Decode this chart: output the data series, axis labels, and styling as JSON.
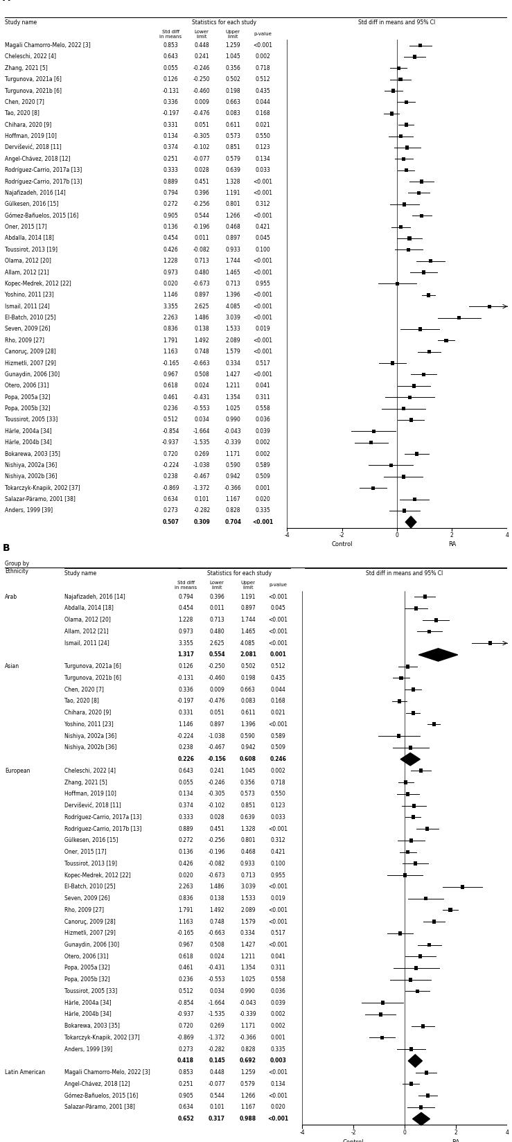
{
  "panel_A": {
    "studies": [
      {
        "name": "Magali Chamorro-Melo, 2022 [3]",
        "std": 0.853,
        "lower": 0.448,
        "upper": 1.259,
        "pval": "<0.001",
        "summary": false
      },
      {
        "name": "Cheleschi, 2022 [4]",
        "std": 0.643,
        "lower": 0.241,
        "upper": 1.045,
        "pval": "0.002",
        "summary": false
      },
      {
        "name": "Zhang, 2021 [5]",
        "std": 0.055,
        "lower": -0.246,
        "upper": 0.356,
        "pval": "0.718",
        "summary": false
      },
      {
        "name": "Turgunova, 2021a [6]",
        "std": 0.126,
        "lower": -0.25,
        "upper": 0.502,
        "pval": "0.512",
        "summary": false
      },
      {
        "name": "Turgunova, 2021b [6]",
        "std": -0.131,
        "lower": -0.46,
        "upper": 0.198,
        "pval": "0.435",
        "summary": false
      },
      {
        "name": "Chen, 2020 [7]",
        "std": 0.336,
        "lower": 0.009,
        "upper": 0.663,
        "pval": "0.044",
        "summary": false
      },
      {
        "name": "Tao, 2020 [8]",
        "std": -0.197,
        "lower": -0.476,
        "upper": 0.083,
        "pval": "0.168",
        "summary": false
      },
      {
        "name": "Chihara, 2020 [9]",
        "std": 0.331,
        "lower": 0.051,
        "upper": 0.611,
        "pval": "0.021",
        "summary": false
      },
      {
        "name": "Hoffman, 2019 [10]",
        "std": 0.134,
        "lower": -0.305,
        "upper": 0.573,
        "pval": "0.550",
        "summary": false
      },
      {
        "name": "Dervišević, 2018 [11]",
        "std": 0.374,
        "lower": -0.102,
        "upper": 0.851,
        "pval": "0.123",
        "summary": false
      },
      {
        "name": "Angel-Chávez, 2018 [12]",
        "std": 0.251,
        "lower": -0.077,
        "upper": 0.579,
        "pval": "0.134",
        "summary": false
      },
      {
        "name": "Rodríguez-Carrio, 2017a [13]",
        "std": 0.333,
        "lower": 0.028,
        "upper": 0.639,
        "pval": "0.033",
        "summary": false
      },
      {
        "name": "Rodríguez-Carrio, 2017b [13]",
        "std": 0.889,
        "lower": 0.451,
        "upper": 1.328,
        "pval": "<0.001",
        "summary": false
      },
      {
        "name": "Najafizadeh, 2016 [14]",
        "std": 0.794,
        "lower": 0.396,
        "upper": 1.191,
        "pval": "<0.001",
        "summary": false
      },
      {
        "name": "Gülkesen, 2016 [15]",
        "std": 0.272,
        "lower": -0.256,
        "upper": 0.801,
        "pval": "0.312",
        "summary": false
      },
      {
        "name": "Gómez-Bañuelos, 2015 [16]",
        "std": 0.905,
        "lower": 0.544,
        "upper": 1.266,
        "pval": "<0.001",
        "summary": false
      },
      {
        "name": "Oner, 2015 [17]",
        "std": 0.136,
        "lower": -0.196,
        "upper": 0.468,
        "pval": "0.421",
        "summary": false
      },
      {
        "name": "Abdalla, 2014 [18]",
        "std": 0.454,
        "lower": 0.011,
        "upper": 0.897,
        "pval": "0.045",
        "summary": false
      },
      {
        "name": "Toussirot, 2013 [19]",
        "std": 0.426,
        "lower": -0.082,
        "upper": 0.933,
        "pval": "0.100",
        "summary": false
      },
      {
        "name": "Olama, 2012 [20]",
        "std": 1.228,
        "lower": 0.713,
        "upper": 1.744,
        "pval": "<0.001",
        "summary": false
      },
      {
        "name": "Allam, 2012 [21]",
        "std": 0.973,
        "lower": 0.48,
        "upper": 1.465,
        "pval": "<0.001",
        "summary": false
      },
      {
        "name": "Kopec-Medrek, 2012 [22]",
        "std": 0.02,
        "lower": -0.673,
        "upper": 0.713,
        "pval": "0.955",
        "summary": false
      },
      {
        "name": "Yoshino, 2011 [23]",
        "std": 1.146,
        "lower": 0.897,
        "upper": 1.396,
        "pval": "<0.001",
        "summary": false
      },
      {
        "name": "Ismail, 2011 [24]",
        "std": 3.355,
        "lower": 2.625,
        "upper": 4.085,
        "pval": "<0.001",
        "summary": false
      },
      {
        "name": "El-Batch, 2010 [25]",
        "std": 2.263,
        "lower": 1.486,
        "upper": 3.039,
        "pval": "<0.001",
        "summary": false
      },
      {
        "name": "Seven, 2009 [26]",
        "std": 0.836,
        "lower": 0.138,
        "upper": 1.533,
        "pval": "0.019",
        "summary": false
      },
      {
        "name": "Rho, 2009 [27]",
        "std": 1.791,
        "lower": 1.492,
        "upper": 2.089,
        "pval": "<0.001",
        "summary": false
      },
      {
        "name": "Canoruç, 2009 [28]",
        "std": 1.163,
        "lower": 0.748,
        "upper": 1.579,
        "pval": "<0.001",
        "summary": false
      },
      {
        "name": "Hizmetli, 2007 [29]",
        "std": -0.165,
        "lower": -0.663,
        "upper": 0.334,
        "pval": "0.517",
        "summary": false
      },
      {
        "name": "Gunaydin, 2006 [30]",
        "std": 0.967,
        "lower": 0.508,
        "upper": 1.427,
        "pval": "<0.001",
        "summary": false
      },
      {
        "name": "Otero, 2006 [31]",
        "std": 0.618,
        "lower": 0.024,
        "upper": 1.211,
        "pval": "0.041",
        "summary": false
      },
      {
        "name": "Popa, 2005a [32]",
        "std": 0.461,
        "lower": -0.431,
        "upper": 1.354,
        "pval": "0.311",
        "summary": false
      },
      {
        "name": "Popa, 2005b [32]",
        "std": 0.236,
        "lower": -0.553,
        "upper": 1.025,
        "pval": "0.558",
        "summary": false
      },
      {
        "name": "Toussirot, 2005 [33]",
        "std": 0.512,
        "lower": 0.034,
        "upper": 0.99,
        "pval": "0.036",
        "summary": false
      },
      {
        "name": "Härle, 2004a [34]",
        "std": -0.854,
        "lower": -1.664,
        "upper": -0.043,
        "pval": "0.039",
        "summary": false
      },
      {
        "name": "Härle, 2004b [34]",
        "std": -0.937,
        "lower": -1.535,
        "upper": -0.339,
        "pval": "0.002",
        "summary": false
      },
      {
        "name": "Bokarewa, 2003 [35]",
        "std": 0.72,
        "lower": 0.269,
        "upper": 1.171,
        "pval": "0.002",
        "summary": false
      },
      {
        "name": "Nishiya, 2002a [36]",
        "std": -0.224,
        "lower": -1.038,
        "upper": 0.59,
        "pval": "0.589",
        "summary": false
      },
      {
        "name": "Nishiya, 2002b [36]",
        "std": 0.238,
        "lower": -0.467,
        "upper": 0.942,
        "pval": "0.509",
        "summary": false
      },
      {
        "name": "Tokarczyk-Knapik, 2002 [37]",
        "std": -0.869,
        "lower": -1.372,
        "upper": -0.366,
        "pval": "0.001",
        "summary": false
      },
      {
        "name": "Salazar-Páramo, 2001 [38]",
        "std": 0.634,
        "lower": 0.101,
        "upper": 1.167,
        "pval": "0.020",
        "summary": false
      },
      {
        "name": "Anders, 1999 [39]",
        "std": 0.273,
        "lower": -0.282,
        "upper": 0.828,
        "pval": "0.335",
        "summary": false
      },
      {
        "name": "",
        "std": 0.507,
        "lower": 0.309,
        "upper": 0.704,
        "pval": "<0.001",
        "summary": true
      }
    ],
    "xmin": -4,
    "xmax": 4,
    "xticks": [
      -4,
      -2,
      0,
      2,
      4
    ]
  },
  "panel_B": {
    "groups": [
      {
        "group": "Arab",
        "name": "Najafizadeh, 2016 [14]",
        "std": 0.794,
        "lower": 0.396,
        "upper": 1.191,
        "pval": "<0.001",
        "summary": false
      },
      {
        "group": "Arab",
        "name": "Abdalla, 2014 [18]",
        "std": 0.454,
        "lower": 0.011,
        "upper": 0.897,
        "pval": "0.045",
        "summary": false
      },
      {
        "group": "Arab",
        "name": "Olama, 2012 [20]",
        "std": 1.228,
        "lower": 0.713,
        "upper": 1.744,
        "pval": "<0.001",
        "summary": false
      },
      {
        "group": "Arab",
        "name": "Allam, 2012 [21]",
        "std": 0.973,
        "lower": 0.48,
        "upper": 1.465,
        "pval": "<0.001",
        "summary": false
      },
      {
        "group": "Arab",
        "name": "Ismail, 2011 [24]",
        "std": 3.355,
        "lower": 2.625,
        "upper": 4.085,
        "pval": "<0.001",
        "summary": false
      },
      {
        "group": "Arab",
        "name": "",
        "std": 1.317,
        "lower": 0.554,
        "upper": 2.081,
        "pval": "0.001",
        "summary": true
      },
      {
        "group": "Asian",
        "name": "Turgunova, 2021a [6]",
        "std": 0.126,
        "lower": -0.25,
        "upper": 0.502,
        "pval": "0.512",
        "summary": false
      },
      {
        "group": "Asian",
        "name": "Turgunova, 2021b [6]",
        "std": -0.131,
        "lower": -0.46,
        "upper": 0.198,
        "pval": "0.435",
        "summary": false
      },
      {
        "group": "Asian",
        "name": "Chen, 2020 [7]",
        "std": 0.336,
        "lower": 0.009,
        "upper": 0.663,
        "pval": "0.044",
        "summary": false
      },
      {
        "group": "Asian",
        "name": "Tao, 2020 [8]",
        "std": -0.197,
        "lower": -0.476,
        "upper": 0.083,
        "pval": "0.168",
        "summary": false
      },
      {
        "group": "Asian",
        "name": "Chihara, 2020 [9]",
        "std": 0.331,
        "lower": 0.051,
        "upper": 0.611,
        "pval": "0.021",
        "summary": false
      },
      {
        "group": "Asian",
        "name": "Yoshino, 2011 [23]",
        "std": 1.146,
        "lower": 0.897,
        "upper": 1.396,
        "pval": "<0.001",
        "summary": false
      },
      {
        "group": "Asian",
        "name": "Nishiya, 2002a [36]",
        "std": -0.224,
        "lower": -1.038,
        "upper": 0.59,
        "pval": "0.589",
        "summary": false
      },
      {
        "group": "Asian",
        "name": "Nishiya, 2002b [36]",
        "std": 0.238,
        "lower": -0.467,
        "upper": 0.942,
        "pval": "0.509",
        "summary": false
      },
      {
        "group": "Asian",
        "name": "",
        "std": 0.226,
        "lower": -0.156,
        "upper": 0.608,
        "pval": "0.246",
        "summary": true
      },
      {
        "group": "European",
        "name": "Cheleschi, 2022 [4]",
        "std": 0.643,
        "lower": 0.241,
        "upper": 1.045,
        "pval": "0.002",
        "summary": false
      },
      {
        "group": "European",
        "name": "Zhang, 2021 [5]",
        "std": 0.055,
        "lower": -0.246,
        "upper": 0.356,
        "pval": "0.718",
        "summary": false
      },
      {
        "group": "European",
        "name": "Hoffman, 2019 [10]",
        "std": 0.134,
        "lower": -0.305,
        "upper": 0.573,
        "pval": "0.550",
        "summary": false
      },
      {
        "group": "European",
        "name": "Dervišević, 2018 [11]",
        "std": 0.374,
        "lower": -0.102,
        "upper": 0.851,
        "pval": "0.123",
        "summary": false
      },
      {
        "group": "European",
        "name": "Rodríguez-Carrio, 2017a [13]",
        "std": 0.333,
        "lower": 0.028,
        "upper": 0.639,
        "pval": "0.033",
        "summary": false
      },
      {
        "group": "European",
        "name": "Rodríguez-Carrio, 2017b [13]",
        "std": 0.889,
        "lower": 0.451,
        "upper": 1.328,
        "pval": "<0.001",
        "summary": false
      },
      {
        "group": "European",
        "name": "Gülkesen, 2016 [15]",
        "std": 0.272,
        "lower": -0.256,
        "upper": 0.801,
        "pval": "0.312",
        "summary": false
      },
      {
        "group": "European",
        "name": "Oner, 2015 [17]",
        "std": 0.136,
        "lower": -0.196,
        "upper": 0.468,
        "pval": "0.421",
        "summary": false
      },
      {
        "group": "European",
        "name": "Toussirot, 2013 [19]",
        "std": 0.426,
        "lower": -0.082,
        "upper": 0.933,
        "pval": "0.100",
        "summary": false
      },
      {
        "group": "European",
        "name": "Kopec-Medrek, 2012 [22]",
        "std": 0.02,
        "lower": -0.673,
        "upper": 0.713,
        "pval": "0.955",
        "summary": false
      },
      {
        "group": "European",
        "name": "El-Batch, 2010 [25]",
        "std": 2.263,
        "lower": 1.486,
        "upper": 3.039,
        "pval": "<0.001",
        "summary": false
      },
      {
        "group": "European",
        "name": "Seven, 2009 [26]",
        "std": 0.836,
        "lower": 0.138,
        "upper": 1.533,
        "pval": "0.019",
        "summary": false
      },
      {
        "group": "European",
        "name": "Rho, 2009 [27]",
        "std": 1.791,
        "lower": 1.492,
        "upper": 2.089,
        "pval": "<0.001",
        "summary": false
      },
      {
        "group": "European",
        "name": "Canoruç, 2009 [28]",
        "std": 1.163,
        "lower": 0.748,
        "upper": 1.579,
        "pval": "<0.001",
        "summary": false
      },
      {
        "group": "European",
        "name": "Hizmetli, 2007 [29]",
        "std": -0.165,
        "lower": -0.663,
        "upper": 0.334,
        "pval": "0.517",
        "summary": false
      },
      {
        "group": "European",
        "name": "Gunaydin, 2006 [30]",
        "std": 0.967,
        "lower": 0.508,
        "upper": 1.427,
        "pval": "<0.001",
        "summary": false
      },
      {
        "group": "European",
        "name": "Otero, 2006 [31]",
        "std": 0.618,
        "lower": 0.024,
        "upper": 1.211,
        "pval": "0.041",
        "summary": false
      },
      {
        "group": "European",
        "name": "Popa, 2005a [32]",
        "std": 0.461,
        "lower": -0.431,
        "upper": 1.354,
        "pval": "0.311",
        "summary": false
      },
      {
        "group": "European",
        "name": "Popa, 2005b [32]",
        "std": 0.236,
        "lower": -0.553,
        "upper": 1.025,
        "pval": "0.558",
        "summary": false
      },
      {
        "group": "European",
        "name": "Toussirot, 2005 [33]",
        "std": 0.512,
        "lower": 0.034,
        "upper": 0.99,
        "pval": "0.036",
        "summary": false
      },
      {
        "group": "European",
        "name": "Härle, 2004a [34]",
        "std": -0.854,
        "lower": -1.664,
        "upper": -0.043,
        "pval": "0.039",
        "summary": false
      },
      {
        "group": "European",
        "name": "Härle, 2004b [34]",
        "std": -0.937,
        "lower": -1.535,
        "upper": -0.339,
        "pval": "0.002",
        "summary": false
      },
      {
        "group": "European",
        "name": "Bokarewa, 2003 [35]",
        "std": 0.72,
        "lower": 0.269,
        "upper": 1.171,
        "pval": "0.002",
        "summary": false
      },
      {
        "group": "European",
        "name": "Tokarczyk-Knapik, 2002 [37]",
        "std": -0.869,
        "lower": -1.372,
        "upper": -0.366,
        "pval": "0.001",
        "summary": false
      },
      {
        "group": "European",
        "name": "Anders, 1999 [39]",
        "std": 0.273,
        "lower": -0.282,
        "upper": 0.828,
        "pval": "0.335",
        "summary": false
      },
      {
        "group": "European",
        "name": "",
        "std": 0.418,
        "lower": 0.145,
        "upper": 0.692,
        "pval": "0.003",
        "summary": true
      },
      {
        "group": "Latin American",
        "name": "Magali Chamorro-Melo, 2022 [3]",
        "std": 0.853,
        "lower": 0.448,
        "upper": 1.259,
        "pval": "<0.001",
        "summary": false
      },
      {
        "group": "Latin American",
        "name": "Angel-Chávez, 2018 [12]",
        "std": 0.251,
        "lower": -0.077,
        "upper": 0.579,
        "pval": "0.134",
        "summary": false
      },
      {
        "group": "Latin American",
        "name": "Gómez-Bañuelos, 2015 [16]",
        "std": 0.905,
        "lower": 0.544,
        "upper": 1.266,
        "pval": "<0.001",
        "summary": false
      },
      {
        "group": "Latin American",
        "name": "Salazar-Páramo, 2001 [38]",
        "std": 0.634,
        "lower": 0.101,
        "upper": 1.167,
        "pval": "0.020",
        "summary": false
      },
      {
        "group": "Latin American",
        "name": "",
        "std": 0.652,
        "lower": 0.317,
        "upper": 0.988,
        "pval": "<0.001",
        "summary": true
      }
    ],
    "xmin": -4,
    "xmax": 4,
    "xticks": [
      -4,
      -2,
      0,
      2,
      4
    ]
  }
}
